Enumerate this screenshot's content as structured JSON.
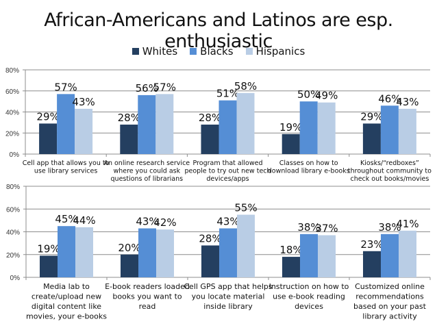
{
  "colors": {
    "Whites": "#243F60",
    "Blacks": "#558ED5",
    "Hispanics": "#B9CDE5"
  },
  "chart_data": [
    {
      "type": "bar",
      "title": "African-Americans and Latinos are esp. enthusiastic",
      "legend": [
        "Whites",
        "Blacks",
        "Hispanics"
      ],
      "legend_position": "top",
      "ylim": [
        0,
        80
      ],
      "yticks": [
        "0%",
        "20%",
        "40%",
        "60%",
        "80%"
      ],
      "grid": true,
      "categories": [
        [
          "Cell app that allows you to",
          "use library services"
        ],
        [
          "An online research service",
          "where you could ask",
          "questions of librarians"
        ],
        [
          "Program that allowed",
          "people to try out new tech",
          "devices/apps"
        ],
        [
          "Classes on how to",
          "download library e-books"
        ],
        [
          "Kiosks/“redboxes”",
          "throughout community to",
          "check out books/movies"
        ]
      ],
      "series": [
        {
          "name": "Whites",
          "values": [
            29,
            28,
            28,
            19,
            29
          ]
        },
        {
          "name": "Blacks",
          "values": [
            57,
            56,
            51,
            50,
            46
          ]
        },
        {
          "name": "Hispanics",
          "values": [
            43,
            57,
            58,
            49,
            43
          ]
        }
      ]
    },
    {
      "type": "bar",
      "legend": [
        "Whites",
        "Blacks",
        "Hispanics"
      ],
      "ylim": [
        0,
        80
      ],
      "yticks": [
        "0%",
        "20%",
        "40%",
        "60%",
        "80%"
      ],
      "grid": true,
      "categories": [
        [
          "Media lab to",
          "create/upload new",
          "digital content like",
          "movies, your e-books"
        ],
        [
          "E-book readers loaded",
          "books you want to",
          "read"
        ],
        [
          "Cell GPS app that helps",
          "you locate material",
          "inside library"
        ],
        [
          "Instruction on how to",
          "use e-book reading",
          "devices"
        ],
        [
          "Customized online",
          "recommendations",
          "based on your past",
          "library activity"
        ]
      ],
      "series": [
        {
          "name": "Whites",
          "values": [
            19,
            20,
            28,
            18,
            23
          ]
        },
        {
          "name": "Blacks",
          "values": [
            45,
            43,
            43,
            38,
            38
          ]
        },
        {
          "name": "Hispanics",
          "values": [
            44,
            42,
            55,
            37,
            41
          ]
        }
      ]
    }
  ]
}
